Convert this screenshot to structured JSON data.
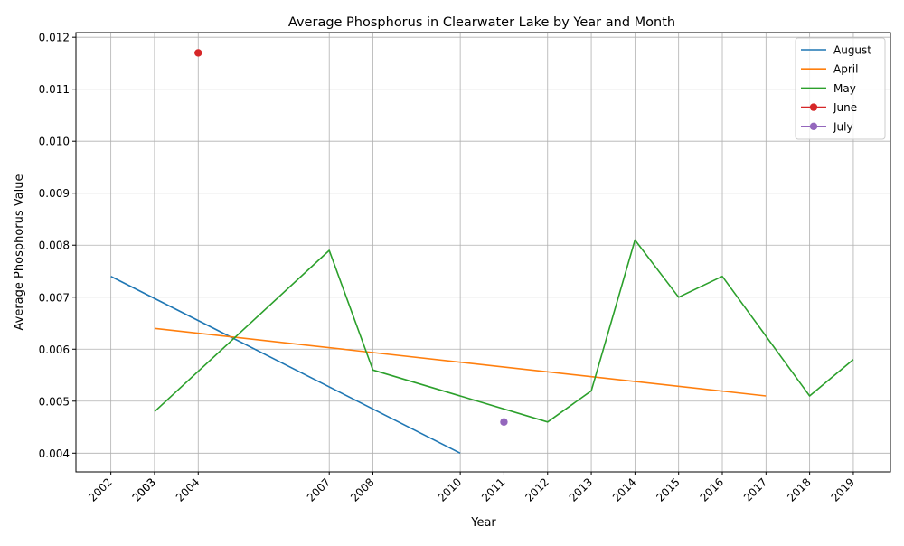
{
  "chart_data": {
    "type": "line",
    "title": "Average Phosphorus in Clearwater Lake by Year and Month",
    "xlabel": "Year",
    "ylabel": "Average Phosphorus Value",
    "x_ticks": [
      "2002",
      "2003",
      "2003",
      "2004",
      "2007",
      "2008",
      "2010",
      "2011",
      "2012",
      "2013",
      "2014",
      "2015",
      "2016",
      "2017",
      "2018",
      "2019"
    ],
    "x_tick_values": [
      2002,
      2003,
      2003,
      2004,
      2007,
      2008,
      2010,
      2011,
      2012,
      2013,
      2014,
      2015,
      2016,
      2017,
      2018,
      2019
    ],
    "y_ticks": [
      "0.004",
      "0.005",
      "0.006",
      "0.007",
      "0.008",
      "0.009",
      "0.010",
      "0.011",
      "0.012"
    ],
    "y_tick_values": [
      0.004,
      0.005,
      0.006,
      0.007,
      0.008,
      0.009,
      0.01,
      0.011,
      0.012
    ],
    "xlim": [
      2001.2,
      2019.85
    ],
    "ylim": [
      0.00364,
      0.01209
    ],
    "grid": true,
    "legend_position": "upper right",
    "series": [
      {
        "name": "August",
        "color": "#1f77b4",
        "marker": false,
        "x": [
          2002,
          2010
        ],
        "y": [
          0.0074,
          0.004
        ]
      },
      {
        "name": "April",
        "color": "#ff7f0e",
        "marker": false,
        "x": [
          2003,
          2017
        ],
        "y": [
          0.0064,
          0.0051
        ]
      },
      {
        "name": "May",
        "color": "#2ca02c",
        "marker": false,
        "x": [
          2003,
          2007,
          2008,
          2012,
          2013,
          2014,
          2015,
          2016,
          2018,
          2019
        ],
        "y": [
          0.0048,
          0.0079,
          0.0056,
          0.0046,
          0.0052,
          0.0081,
          0.007,
          0.0074,
          0.0051,
          0.0058
        ]
      },
      {
        "name": "June",
        "color": "#d62728",
        "marker": true,
        "x": [
          2004
        ],
        "y": [
          0.0117
        ]
      },
      {
        "name": "July",
        "color": "#9467bd",
        "marker": true,
        "x": [
          2011
        ],
        "y": [
          0.0046
        ]
      }
    ]
  }
}
